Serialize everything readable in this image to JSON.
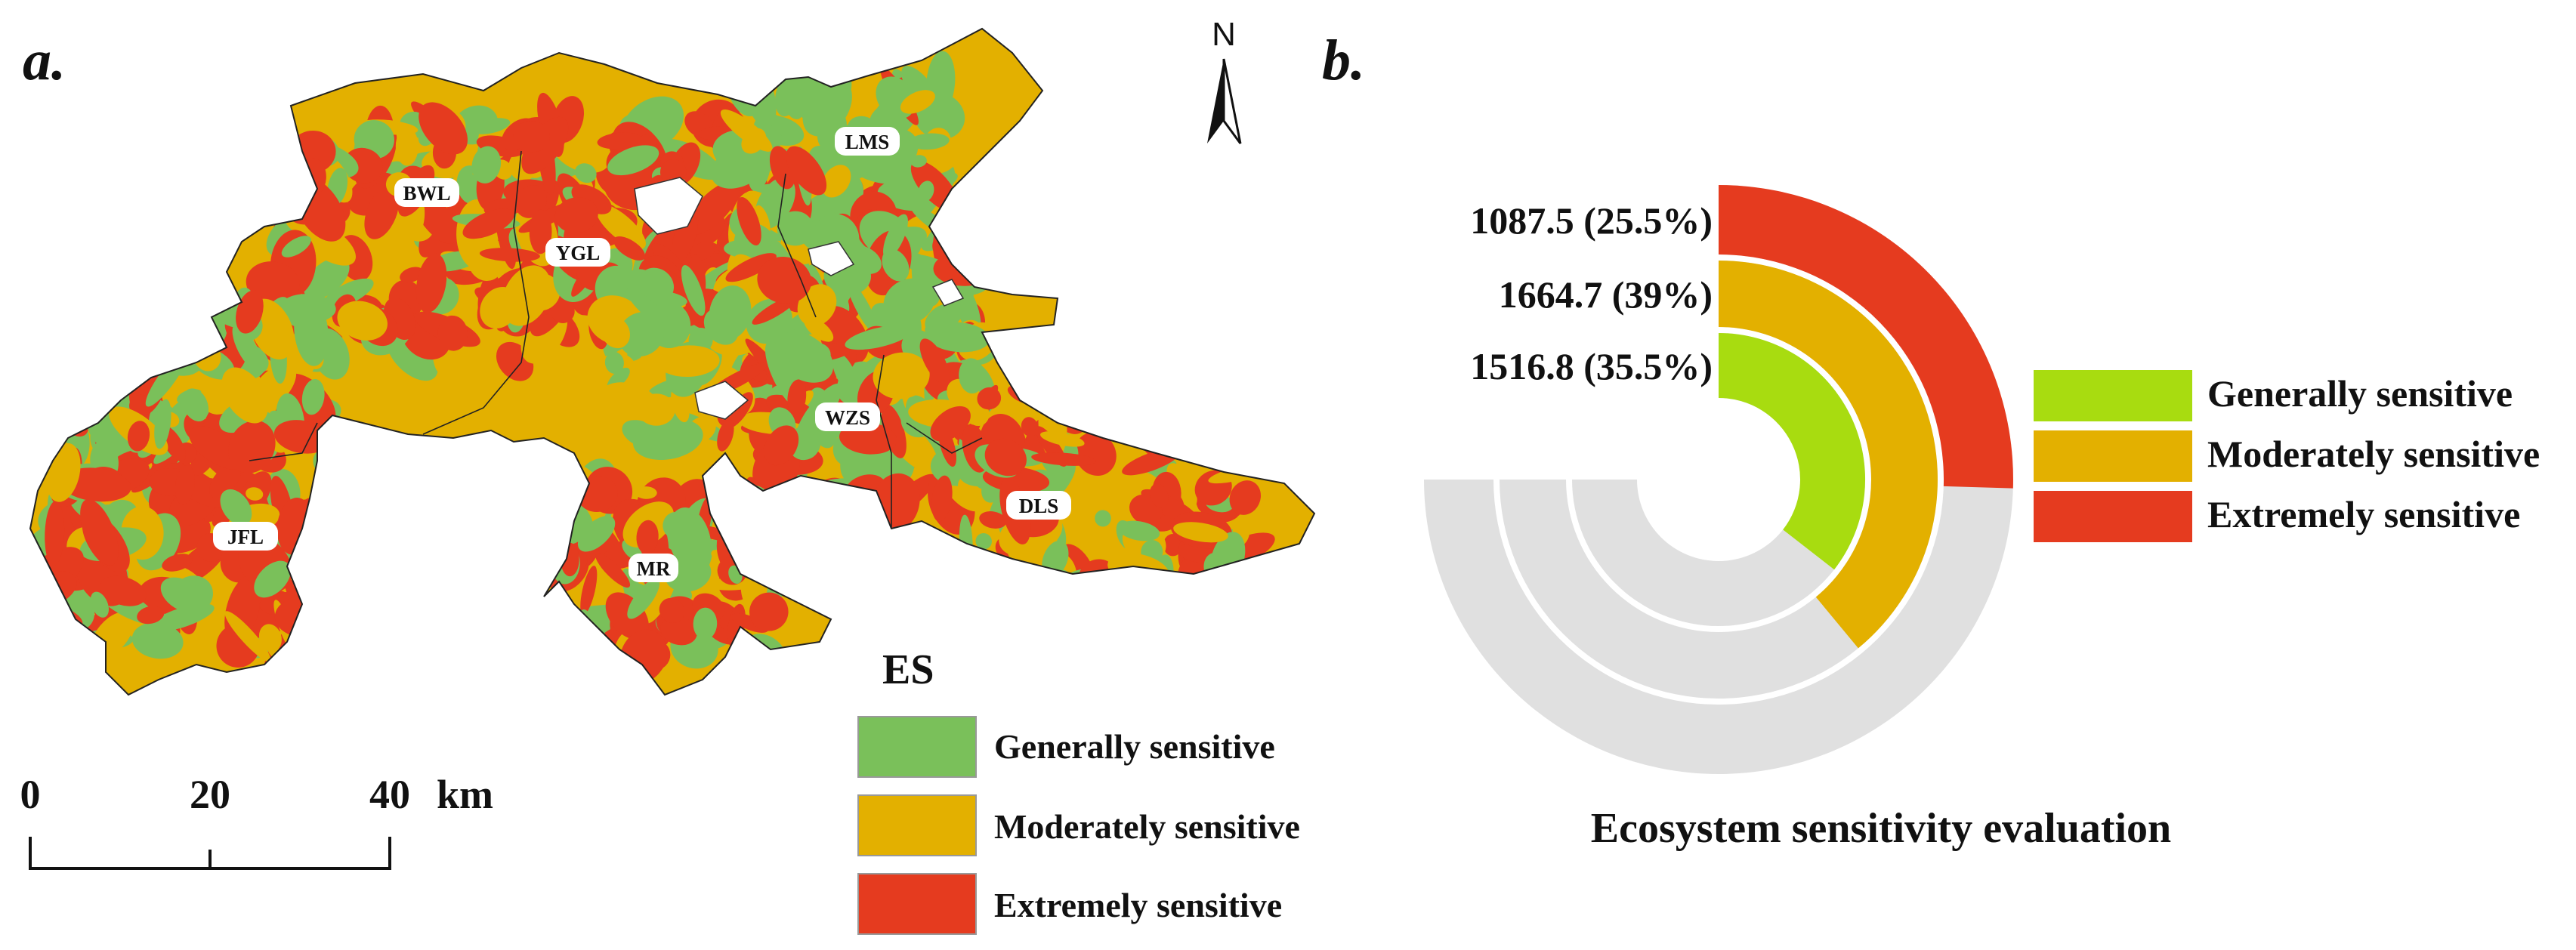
{
  "panel_a": {
    "letter": "a.",
    "north_label": "N",
    "regions": [
      "BWL",
      "YGL",
      "LMS",
      "WZS",
      "DLS",
      "JFL",
      "MR"
    ],
    "legend": {
      "title": "ES",
      "items": [
        {
          "label": "Generally sensitive",
          "color": "#7ac05a"
        },
        {
          "label": "Moderately sensitive",
          "color": "#e3b000"
        },
        {
          "label": "Extremely sensitive",
          "color": "#e53b1f"
        }
      ]
    },
    "scale_bar": {
      "ticks": [
        "0",
        "20",
        "40"
      ],
      "unit": "km"
    }
  },
  "panel_b": {
    "letter": "b.",
    "chart_data": {
      "type": "radial-bar",
      "title": "Ecosystem sensitivity evaluation",
      "max_total": 4269,
      "series": [
        {
          "name": "Extremely sensitive",
          "value": 1087.5,
          "percent": 25.5,
          "label": "1087.5 (25.5%)",
          "color": "#e53b1f"
        },
        {
          "name": "Moderately sensitive",
          "value": 1664.7,
          "percent": 39,
          "label": "1664.7 (39%)",
          "color": "#e3b000"
        },
        {
          "name": "Generally sensitive",
          "value": 1516.8,
          "percent": 35.5,
          "label": "1516.8 (35.5%)",
          "color": "#a8dc10"
        }
      ],
      "legend_order": [
        "Generally sensitive",
        "Moderately sensitive",
        "Extremely sensitive"
      ],
      "legend_placement": "right",
      "track_color": "#e0e0e0"
    }
  }
}
